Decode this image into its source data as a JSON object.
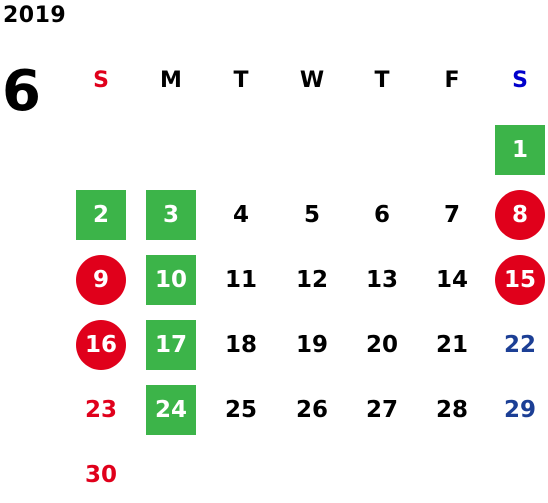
{
  "calendar": {
    "year": "2019",
    "month": "6",
    "weekday_headers": [
      "S",
      "M",
      "T",
      "W",
      "T",
      "F",
      "S"
    ],
    "weekday_colors": [
      "#e0001b",
      "#000000",
      "#000000",
      "#000000",
      "#000000",
      "#000000",
      "#0000cc"
    ],
    "weeks": [
      [
        null,
        null,
        null,
        null,
        null,
        null,
        {
          "day": "1",
          "mark": "green"
        }
      ],
      [
        {
          "day": "2",
          "mark": "green"
        },
        {
          "day": "3",
          "mark": "green"
        },
        {
          "day": "4"
        },
        {
          "day": "5"
        },
        {
          "day": "6"
        },
        {
          "day": "7"
        },
        {
          "day": "8",
          "mark": "red"
        }
      ],
      [
        {
          "day": "9",
          "mark": "red"
        },
        {
          "day": "10",
          "mark": "green"
        },
        {
          "day": "11"
        },
        {
          "day": "12"
        },
        {
          "day": "13"
        },
        {
          "day": "14"
        },
        {
          "day": "15",
          "mark": "red"
        }
      ],
      [
        {
          "day": "16",
          "mark": "red"
        },
        {
          "day": "17",
          "mark": "green"
        },
        {
          "day": "18"
        },
        {
          "day": "19"
        },
        {
          "day": "20"
        },
        {
          "day": "21"
        },
        {
          "day": "22"
        }
      ],
      [
        {
          "day": "23"
        },
        {
          "day": "24",
          "mark": "green"
        },
        {
          "day": "25"
        },
        {
          "day": "26"
        },
        {
          "day": "27"
        },
        {
          "day": "28"
        },
        {
          "day": "29"
        }
      ],
      [
        {
          "day": "30"
        },
        null,
        null,
        null,
        null,
        null,
        null
      ]
    ],
    "colors": {
      "green_mark": "#3cb449",
      "red_mark": "#e0001b",
      "sunday_text": "#e0001b",
      "saturday_text": "#1c3f95"
    }
  }
}
